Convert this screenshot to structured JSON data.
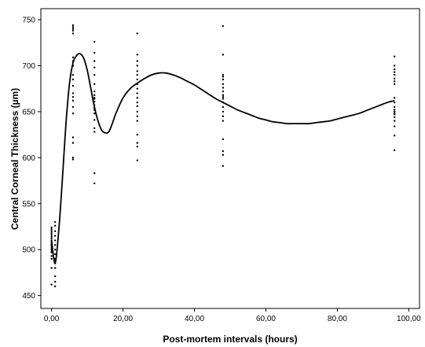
{
  "chart_data": {
    "type": "scatter",
    "title": "",
    "xlabel": "Post-mortem intervals (hours)",
    "ylabel": "Central Corneal Thickness (µm)",
    "xlim": [
      -3,
      103
    ],
    "ylim": [
      436,
      762
    ],
    "x_ticks": [
      {
        "value": 0,
        "label": "0,00"
      },
      {
        "value": 20,
        "label": "20,00"
      },
      {
        "value": 40,
        "label": "40,00"
      },
      {
        "value": 60,
        "label": "60,00"
      },
      {
        "value": 80,
        "label": "80,00"
      },
      {
        "value": 100,
        "label": "100,00"
      }
    ],
    "y_ticks": [
      {
        "value": 450,
        "label": "450"
      },
      {
        "value": 500,
        "label": "500"
      },
      {
        "value": 550,
        "label": "550"
      },
      {
        "value": 600,
        "label": "600"
      },
      {
        "value": 650,
        "label": "650"
      },
      {
        "value": 700,
        "label": "700"
      },
      {
        "value": 750,
        "label": "750"
      }
    ],
    "grid": false,
    "legend": "none",
    "series": [
      {
        "kind": "scatter",
        "x": [
          0,
          0,
          0,
          0,
          0,
          0,
          0,
          0,
          0,
          0,
          0,
          0,
          0,
          0,
          0,
          0,
          0,
          0,
          0,
          0,
          1,
          1,
          1,
          1,
          1,
          1,
          1,
          1,
          1,
          1,
          1,
          1,
          1,
          1,
          1,
          6,
          6,
          6,
          6,
          6,
          6,
          6,
          6,
          6,
          6,
          6,
          6,
          6,
          6,
          6,
          6,
          6,
          6,
          6,
          6,
          12,
          12,
          12,
          12,
          12,
          12,
          12,
          12,
          12,
          12,
          12,
          12,
          12,
          12,
          12,
          12,
          12,
          12,
          12,
          12,
          24,
          24,
          24,
          24,
          24,
          24,
          24,
          24,
          24,
          24,
          24,
          24,
          24,
          24,
          24,
          24,
          24,
          24,
          24,
          24,
          48,
          48,
          48,
          48,
          48,
          48,
          48,
          48,
          48,
          48,
          48,
          48,
          48,
          48,
          48,
          48,
          48,
          48,
          48,
          48,
          96,
          96,
          96,
          96,
          96,
          96,
          96,
          96,
          96,
          96,
          96,
          96,
          96,
          96,
          96,
          96,
          96,
          96,
          96,
          96
        ],
        "y": [
          462,
          480,
          490,
          497,
          500,
          502,
          504,
          506,
          508,
          510,
          512,
          514,
          516,
          518,
          520,
          522,
          524,
          505,
          498,
          493,
          460,
          465,
          471,
          480,
          485,
          490,
          495,
          500,
          505,
          510,
          515,
          520,
          526,
          530,
          488,
          598,
          600,
          616,
          622,
          648,
          655,
          662,
          666,
          670,
          678,
          685,
          700,
          705,
          709,
          735,
          738,
          740,
          742,
          744,
          690,
          572,
          583,
          628,
          632,
          641,
          648,
          654,
          657,
          661,
          665,
          668,
          672,
          680,
          690,
          698,
          705,
          714,
          726,
          664,
          652,
          597,
          612,
          616,
          625,
          645,
          650,
          656,
          665,
          670,
          675,
          680,
          685,
          690,
          694,
          700,
          705,
          712,
          735,
          660,
          640,
          591,
          603,
          607,
          620,
          640,
          655,
          660,
          664,
          668,
          672,
          676,
          680,
          685,
          688,
          690,
          712,
          743,
          666,
          650,
          645,
          608,
          624,
          634,
          640,
          644,
          647,
          650,
          655,
          660,
          665,
          683,
          686,
          690,
          693,
          696,
          700,
          710,
          680,
          652,
          648
        ]
      },
      {
        "kind": "line",
        "x": [
          0,
          1,
          2,
          3,
          4,
          5,
          6,
          7,
          8,
          9,
          10,
          11,
          12,
          13,
          14,
          15,
          16,
          17,
          18,
          20,
          22,
          24,
          26,
          28,
          30,
          32,
          34,
          36,
          38,
          40,
          42,
          44,
          46,
          48,
          50,
          52,
          54,
          56,
          58,
          60,
          62,
          64,
          66,
          68,
          70,
          72,
          74,
          76,
          78,
          80,
          82,
          84,
          86,
          88,
          90,
          92,
          94,
          96
        ],
        "y": [
          510,
          485,
          520,
          575,
          635,
          680,
          703,
          711,
          713,
          708,
          695,
          675,
          655,
          640,
          630,
          627,
          628,
          637,
          648,
          665,
          675,
          681,
          686,
          690,
          692,
          692,
          690,
          687,
          683,
          679,
          674,
          669,
          664,
          660,
          656,
          652,
          649,
          646,
          643,
          641,
          639,
          638,
          637,
          637,
          637,
          637,
          638,
          639,
          640,
          642,
          644,
          646,
          648,
          651,
          654,
          657,
          660,
          662
        ]
      }
    ]
  }
}
